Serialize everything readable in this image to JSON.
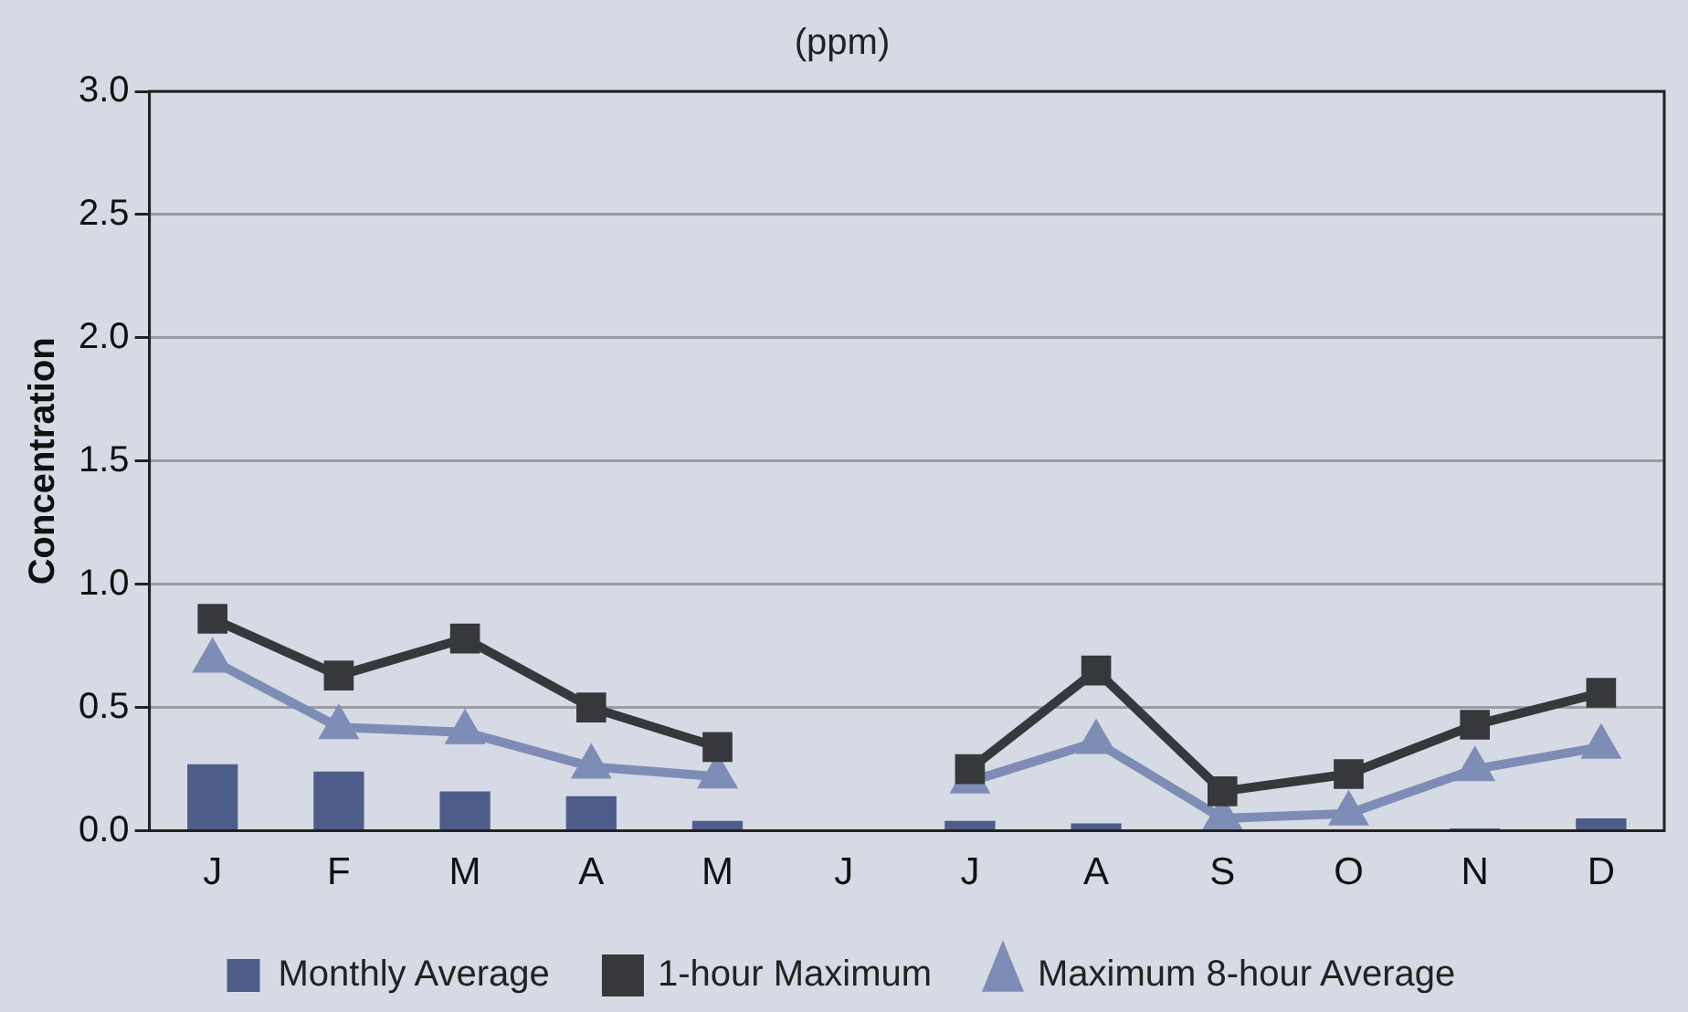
{
  "chart_data": {
    "type": "bar",
    "title": "(ppm)",
    "ylabel": "Concentration",
    "categories": [
      "J",
      "F",
      "M",
      "A",
      "M",
      "J",
      "J",
      "A",
      "S",
      "O",
      "N",
      "D"
    ],
    "series": [
      {
        "name": "Monthly Average",
        "color": "#4e5c8a",
        "values": [
          0.27,
          0.24,
          0.16,
          0.14,
          0.04,
          null,
          0.04,
          0.03,
          null,
          null,
          0.01,
          0.05
        ]
      },
      {
        "name": "1-hour Maximum",
        "type": "line",
        "color": "#36383c",
        "marker": "square",
        "values": [
          0.86,
          0.63,
          0.78,
          0.5,
          0.34,
          null,
          0.25,
          0.65,
          0.16,
          0.23,
          0.43,
          0.56
        ]
      },
      {
        "name": "Maximum 8-hour Average",
        "type": "line",
        "color": "#7d8db5",
        "marker": "triangle",
        "values": [
          0.69,
          0.42,
          0.4,
          0.26,
          0.22,
          null,
          0.2,
          0.36,
          0.05,
          0.07,
          0.25,
          0.34
        ]
      }
    ],
    "ylim": [
      0,
      3
    ],
    "yticks": [
      {
        "value": 0,
        "label": "0.0"
      },
      {
        "value": 0.5,
        "label": "0.5"
      },
      {
        "value": 1,
        "label": "1.0"
      },
      {
        "value": 1.5,
        "label": "1.5"
      },
      {
        "value": 2,
        "label": "2.0"
      },
      {
        "value": 2.5,
        "label": "2.5"
      },
      {
        "value": 3,
        "label": "3.0"
      }
    ],
    "grid": "y",
    "legend": "bottom"
  }
}
